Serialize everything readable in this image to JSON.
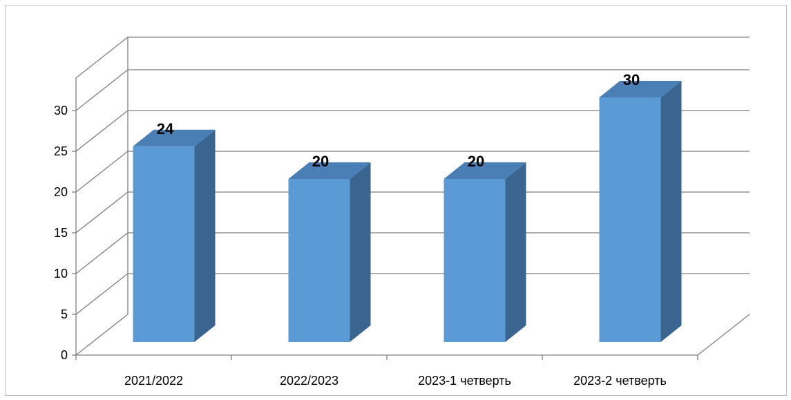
{
  "chart_data": {
    "type": "bar",
    "style": "3d-column",
    "categories": [
      "2021/2022",
      "2022/2023",
      "2023-1 четверть",
      "2023-2 четверть"
    ],
    "values": [
      24,
      20,
      20,
      30
    ],
    "data_labels": [
      "24",
      "20",
      "20",
      "30"
    ],
    "ylim": [
      0,
      30
    ],
    "yticks": [
      "0",
      "5",
      "10",
      "15",
      "20",
      "25",
      "30"
    ],
    "grid": true,
    "legend": "none",
    "colors": {
      "bar_front": "#5b9bd5",
      "bar_top": "#4a7fb5",
      "bar_side": "#3a6590",
      "gridline": "#7f7f7f"
    }
  }
}
